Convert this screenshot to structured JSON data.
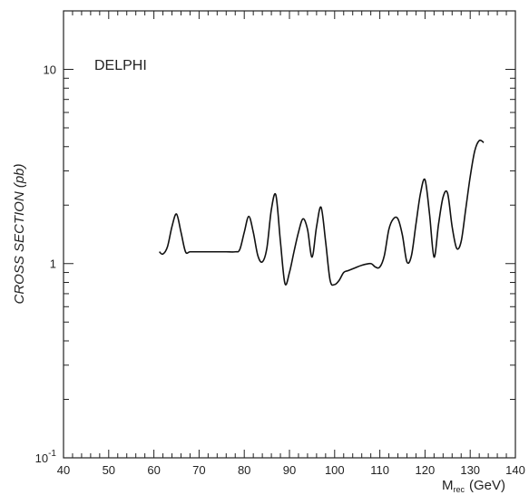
{
  "chart_data": {
    "type": "line",
    "annotation": "DELPHI",
    "ylabel": "CROSS SECTION (pb)",
    "xlabel_main": "M",
    "xlabel_sub": "rec",
    "xlabel_unit": "(GeV)",
    "xlim": [
      40,
      140
    ],
    "ylim": [
      0.1,
      20
    ],
    "yscale": "log",
    "grid": false,
    "x_ticks": [
      40,
      50,
      60,
      70,
      80,
      90,
      100,
      110,
      120,
      130,
      140
    ],
    "y_tick_labels": [
      {
        "value": 10,
        "label": "10"
      },
      {
        "value": 1,
        "label": "1"
      },
      {
        "value": 0.1,
        "label": "10",
        "sup": "-1"
      }
    ],
    "series": [
      {
        "color": "#111111",
        "x": [
          61.2,
          62,
          63,
          64,
          65,
          66,
          67,
          68,
          70,
          72,
          74,
          76,
          78,
          79,
          80,
          81,
          82,
          83,
          84,
          85,
          86,
          87,
          88,
          89,
          90,
          91,
          92,
          93,
          94,
          95,
          96,
          97,
          98,
          99,
          100,
          101,
          102,
          103,
          104,
          106,
          108,
          109,
          110,
          111,
          112,
          113,
          114,
          115,
          116,
          117,
          118,
          119,
          120,
          121,
          122,
          123,
          124,
          125,
          126,
          127,
          128,
          129,
          130,
          131,
          132,
          133
        ],
        "y": [
          1.15,
          1.12,
          1.22,
          1.55,
          1.8,
          1.45,
          1.15,
          1.15,
          1.15,
          1.15,
          1.15,
          1.15,
          1.15,
          1.18,
          1.45,
          1.75,
          1.45,
          1.1,
          1.02,
          1.2,
          1.9,
          2.25,
          1.3,
          0.79,
          0.9,
          1.15,
          1.45,
          1.7,
          1.5,
          1.08,
          1.55,
          1.95,
          1.3,
          0.82,
          0.78,
          0.82,
          0.9,
          0.92,
          0.94,
          0.98,
          1.0,
          0.96,
          0.96,
          1.1,
          1.5,
          1.7,
          1.7,
          1.4,
          1.02,
          1.1,
          1.6,
          2.3,
          2.7,
          1.8,
          1.08,
          1.6,
          2.2,
          2.3,
          1.55,
          1.2,
          1.3,
          1.9,
          2.8,
          3.8,
          4.3,
          4.2
        ]
      }
    ]
  }
}
